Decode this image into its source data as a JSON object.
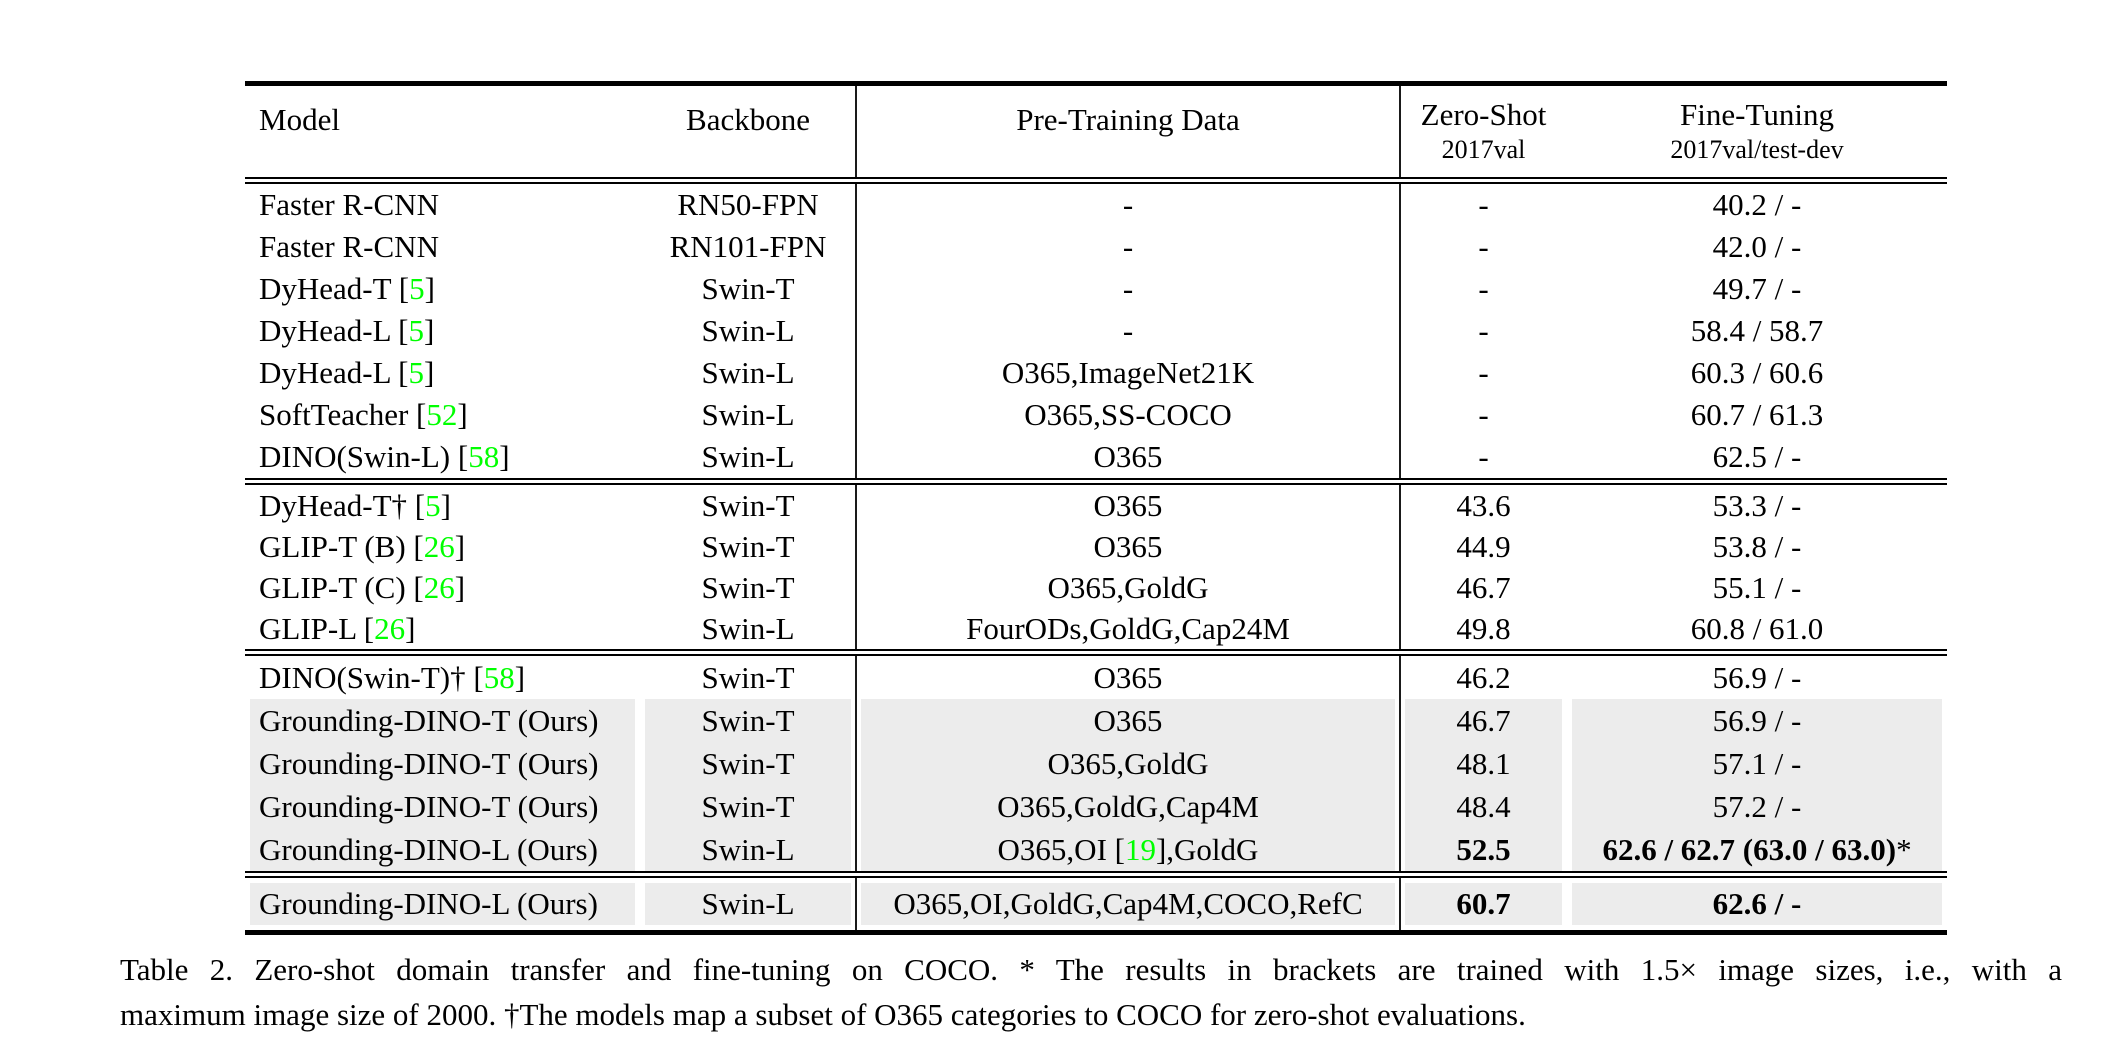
{
  "table": {
    "header": {
      "model": "Model",
      "backbone": "Backbone",
      "pretrain": "Pre-Training Data",
      "zeroshot": "Zero-Shot",
      "zeroshot_sub": "2017val",
      "finetune": "Fine-Tuning",
      "finetune_sub": "2017val/test-dev"
    },
    "blocks": [
      {
        "rows": [
          {
            "model_pre": "Faster R-CNN",
            "model_ref": "",
            "model_post": "",
            "backbone": "RN50-FPN",
            "pre_pre": "-",
            "pre_ref": "",
            "pre_post": "",
            "zeroshot": "-",
            "finetune": "40.2 / -",
            "finetune_suffix": "",
            "bold": false,
            "highlight": false
          },
          {
            "model_pre": "Faster R-CNN",
            "model_ref": "",
            "model_post": "",
            "backbone": "RN101-FPN",
            "pre_pre": "-",
            "pre_ref": "",
            "pre_post": "",
            "zeroshot": "-",
            "finetune": "42.0 / -",
            "finetune_suffix": "",
            "bold": false,
            "highlight": false
          },
          {
            "model_pre": "DyHead-T [",
            "model_ref": "5",
            "model_post": "]",
            "backbone": "Swin-T",
            "pre_pre": "-",
            "pre_ref": "",
            "pre_post": "",
            "zeroshot": "-",
            "finetune": "49.7 / -",
            "finetune_suffix": "",
            "bold": false,
            "highlight": false
          },
          {
            "model_pre": "DyHead-L [",
            "model_ref": "5",
            "model_post": "]",
            "backbone": "Swin-L",
            "pre_pre": "-",
            "pre_ref": "",
            "pre_post": "",
            "zeroshot": "-",
            "finetune": "58.4 / 58.7",
            "finetune_suffix": "",
            "bold": false,
            "highlight": false
          },
          {
            "model_pre": "DyHead-L [",
            "model_ref": "5",
            "model_post": "]",
            "backbone": "Swin-L",
            "pre_pre": "O365,ImageNet21K",
            "pre_ref": "",
            "pre_post": "",
            "zeroshot": "-",
            "finetune": "60.3 / 60.6",
            "finetune_suffix": "",
            "bold": false,
            "highlight": false
          },
          {
            "model_pre": "SoftTeacher [",
            "model_ref": "52",
            "model_post": "]",
            "backbone": "Swin-L",
            "pre_pre": "O365,SS-COCO",
            "pre_ref": "",
            "pre_post": "",
            "zeroshot": "-",
            "finetune": "60.7 / 61.3",
            "finetune_suffix": "",
            "bold": false,
            "highlight": false
          },
          {
            "model_pre": "DINO(Swin-L) [",
            "model_ref": "58",
            "model_post": "]",
            "backbone": "Swin-L",
            "pre_pre": "O365",
            "pre_ref": "",
            "pre_post": "",
            "zeroshot": "-",
            "finetune": "62.5 / -",
            "finetune_suffix": "",
            "bold": false,
            "highlight": false
          }
        ]
      },
      {
        "rows": [
          {
            "model_pre": "DyHead-T† [",
            "model_ref": "5",
            "model_post": "]",
            "backbone": "Swin-T",
            "pre_pre": "O365",
            "pre_ref": "",
            "pre_post": "",
            "zeroshot": "43.6",
            "finetune": "53.3 / -",
            "finetune_suffix": "",
            "bold": false,
            "highlight": false
          },
          {
            "model_pre": "GLIP-T (B) [",
            "model_ref": "26",
            "model_post": "]",
            "backbone": "Swin-T",
            "pre_pre": "O365",
            "pre_ref": "",
            "pre_post": "",
            "zeroshot": "44.9",
            "finetune": "53.8 / -",
            "finetune_suffix": "",
            "bold": false,
            "highlight": false
          },
          {
            "model_pre": "GLIP-T (C) [",
            "model_ref": "26",
            "model_post": "]",
            "backbone": "Swin-T",
            "pre_pre": "O365,GoldG",
            "pre_ref": "",
            "pre_post": "",
            "zeroshot": "46.7",
            "finetune": "55.1 / -",
            "finetune_suffix": "",
            "bold": false,
            "highlight": false
          },
          {
            "model_pre": "GLIP-L [",
            "model_ref": "26",
            "model_post": "]",
            "backbone": "Swin-L",
            "pre_pre": "FourODs,GoldG,Cap24M",
            "pre_ref": "",
            "pre_post": "",
            "zeroshot": "49.8",
            "finetune": "60.8 / 61.0",
            "finetune_suffix": "",
            "bold": false,
            "highlight": false
          }
        ]
      },
      {
        "rows": [
          {
            "model_pre": "DINO(Swin-T)† [",
            "model_ref": "58",
            "model_post": "]",
            "backbone": "Swin-T",
            "pre_pre": "O365",
            "pre_ref": "",
            "pre_post": "",
            "zeroshot": "46.2",
            "finetune": "56.9 / -",
            "finetune_suffix": "",
            "bold": false,
            "highlight": false
          },
          {
            "model_pre": "Grounding-DINO-T (Ours)",
            "model_ref": "",
            "model_post": "",
            "backbone": "Swin-T",
            "pre_pre": "O365",
            "pre_ref": "",
            "pre_post": "",
            "zeroshot": "46.7",
            "finetune": "56.9 / -",
            "finetune_suffix": "",
            "bold": false,
            "highlight": true
          },
          {
            "model_pre": "Grounding-DINO-T (Ours)",
            "model_ref": "",
            "model_post": "",
            "backbone": "Swin-T",
            "pre_pre": "O365,GoldG",
            "pre_ref": "",
            "pre_post": "",
            "zeroshot": "48.1",
            "finetune": "57.1 / -",
            "finetune_suffix": "",
            "bold": false,
            "highlight": true
          },
          {
            "model_pre": "Grounding-DINO-T (Ours)",
            "model_ref": "",
            "model_post": "",
            "backbone": "Swin-T",
            "pre_pre": "O365,GoldG,Cap4M",
            "pre_ref": "",
            "pre_post": "",
            "zeroshot": "48.4",
            "finetune": "57.2 / -",
            "finetune_suffix": "",
            "bold": false,
            "highlight": true
          },
          {
            "model_pre": "Grounding-DINO-L (Ours)",
            "model_ref": "",
            "model_post": "",
            "backbone": "Swin-L",
            "pre_pre": "O365,OI [",
            "pre_ref": "19",
            "pre_post": "],GoldG",
            "zeroshot": "52.5",
            "finetune": "62.6 / 62.7 (63.0 / 63.0)",
            "finetune_suffix": "*",
            "bold": true,
            "highlight": true
          }
        ]
      },
      {
        "rows": [
          {
            "model_pre": "Grounding-DINO-L (Ours)",
            "model_ref": "",
            "model_post": "",
            "backbone": "Swin-L",
            "pre_pre": "O365,OI,GoldG,Cap4M,COCO,RefC",
            "pre_ref": "",
            "pre_post": "",
            "zeroshot": "60.7",
            "finetune": "62.6 / -",
            "finetune_suffix": "",
            "bold": true,
            "highlight": true
          }
        ]
      }
    ]
  },
  "caption": {
    "line1": "Table 2.  Zero-shot domain transfer and fine-tuning on COCO. * The results in brackets are trained with 1.5× image sizes, i.e., with a",
    "line2": "maximum image size of 2000. †The models map a subset of O365 categories to COCO for zero-shot evaluations."
  },
  "colors": {
    "reference_green": "#00ff00",
    "row_highlight_gray": "#ececec"
  }
}
